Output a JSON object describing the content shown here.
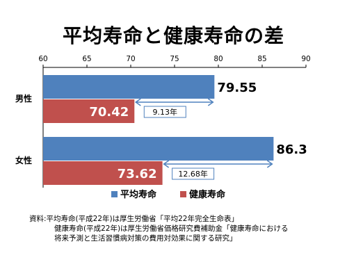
{
  "title": "平均寿命と健康寿命の差",
  "chart_data": {
    "type": "bar",
    "orientation": "horizontal",
    "title": "平均寿命と健康寿命の差",
    "categories": [
      "男性",
      "女性"
    ],
    "series": [
      {
        "name": "平均寿命",
        "color": "#4f81bd",
        "values": [
          79.55,
          86.3
        ],
        "labels": [
          "79.55",
          "86.3"
        ]
      },
      {
        "name": "健康寿命",
        "color": "#c0504d",
        "values": [
          70.42,
          73.62
        ],
        "labels": [
          "70.42",
          "73.62"
        ]
      }
    ],
    "xlim": [
      60,
      90
    ],
    "ticks": [
      "60",
      "65",
      "70",
      "75",
      "80",
      "85",
      "90"
    ],
    "axis_position": "top",
    "grid": false,
    "legend_position": "bottom",
    "annotations": [
      {
        "category": "男性",
        "from": 70.42,
        "to": 79.55,
        "label": "9.13年"
      },
      {
        "category": "女性",
        "from": 73.62,
        "to": 86.3,
        "label": "12.68年"
      }
    ]
  },
  "source": {
    "label": "資料:",
    "line1": "平均寿命(平成22年)は厚生労働省「平均22年完全生命表」",
    "line2": "健康寿命(平成22年)は厚生労働省価格研究費補助金「健康寿命における",
    "line3": "将来予測と生活習慣病対策の費用対効果に関する研究」"
  }
}
